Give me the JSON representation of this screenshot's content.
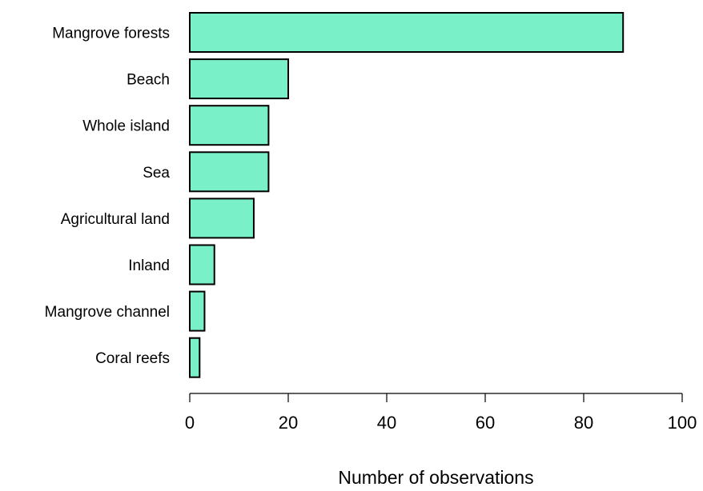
{
  "chart_data": {
    "type": "bar",
    "orientation": "horizontal",
    "categories": [
      "Mangrove forests",
      "Beach",
      "Whole island",
      "Sea",
      "Agricultural land",
      "Inland",
      "Mangrove channel",
      "Coral reefs"
    ],
    "values": [
      88,
      20,
      16,
      16,
      13,
      5,
      3,
      2
    ],
    "title": "",
    "xlabel": "Number of observations",
    "ylabel": "",
    "xlim": [
      0,
      100
    ],
    "xticks": [
      0,
      20,
      40,
      60,
      80,
      100
    ],
    "grid": false,
    "legend": "none",
    "bar_color": "#7af0c8",
    "bar_edge_color": "#000000"
  }
}
